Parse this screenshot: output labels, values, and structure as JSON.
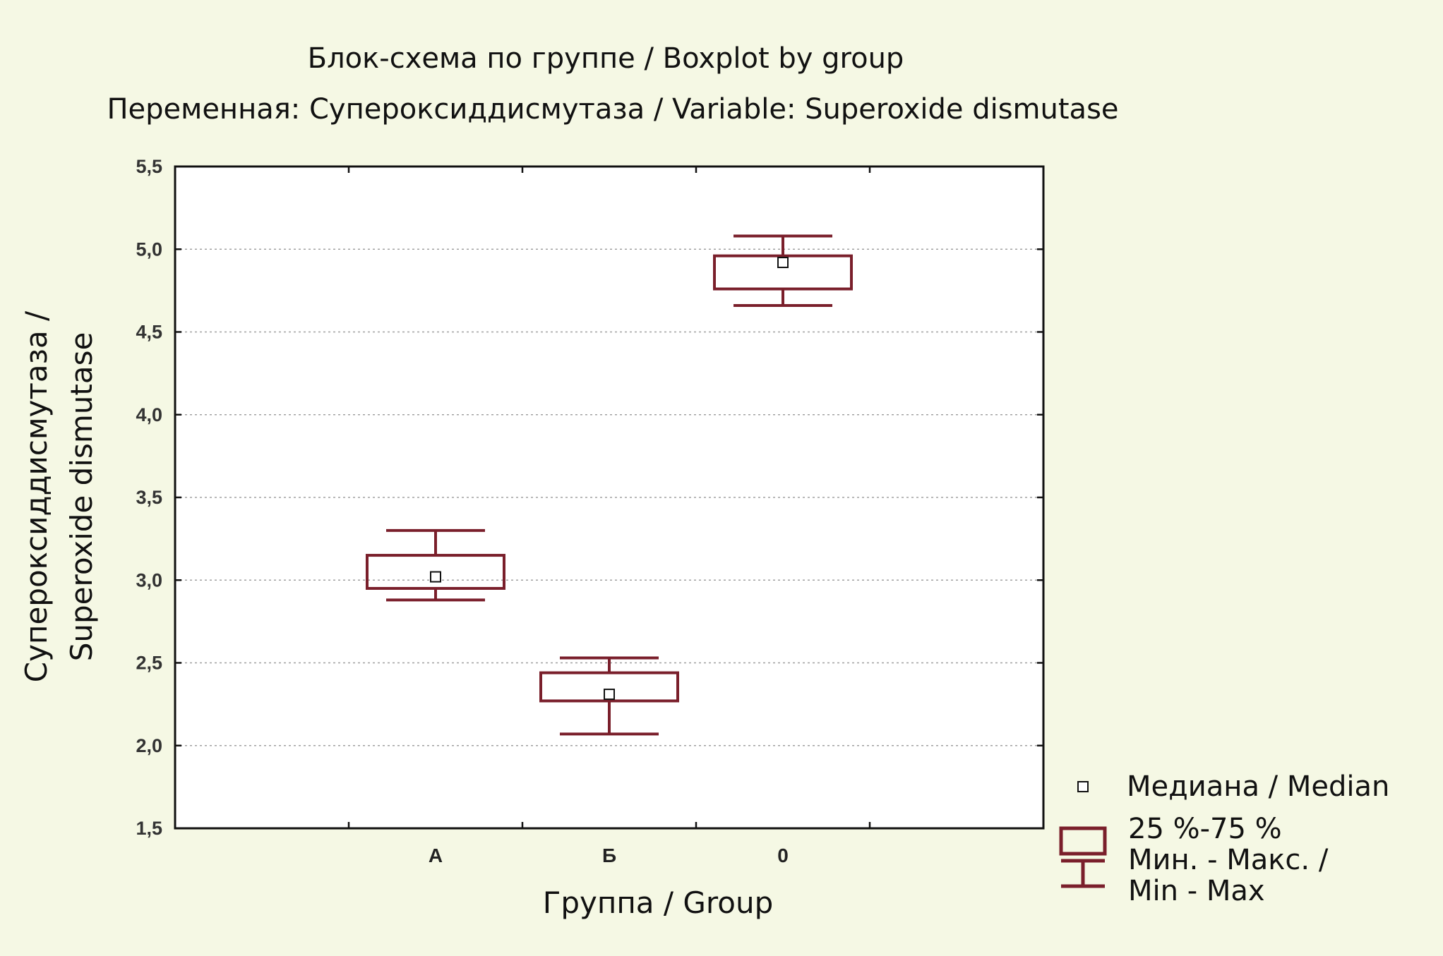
{
  "chart_data": {
    "type": "boxplot",
    "title": "Блок-схема по группе / Boxplot by group",
    "subtitle": "Переменная: Супероксиддисмутаза / Variable: Superoxide dismutase",
    "xlabel": "Группа / Group",
    "ylabel_line1": "Супероксиддисмутаза /",
    "ylabel_line2": "Superoxide dismutase",
    "ylim": [
      1.5,
      5.5
    ],
    "yticks": [
      1.5,
      2.0,
      2.5,
      3.0,
      3.5,
      4.0,
      4.5,
      5.0,
      5.5
    ],
    "ytick_labels": [
      "1,5",
      "2,0",
      "2,5",
      "3,0",
      "3,5",
      "4,0",
      "4,5",
      "5,0",
      "5,5"
    ],
    "grid": true,
    "categories": [
      "А",
      "Б",
      "0"
    ],
    "boxes": [
      {
        "category": "А",
        "min": 2.88,
        "q1": 2.95,
        "median": 3.02,
        "q3": 3.15,
        "max": 3.3
      },
      {
        "category": "Б",
        "min": 2.07,
        "q1": 2.27,
        "median": 2.31,
        "q3": 2.44,
        "max": 2.53
      },
      {
        "category": "0",
        "min": 4.66,
        "q1": 4.76,
        "median": 4.92,
        "q3": 4.96,
        "max": 5.08
      }
    ],
    "legend": {
      "position": "bottom-right",
      "median_label": "Медиана / Median",
      "box_label": "25 %-75 %",
      "whisker_label_line1": "Мин. - Макс. /",
      "whisker_label_line2": "Min - Max"
    },
    "colors": {
      "background": "#f5f8e4",
      "plot_background": "#ffffff",
      "box": "#7a1f2b",
      "grid": "#a0a0a0",
      "axis": "#111111"
    }
  }
}
